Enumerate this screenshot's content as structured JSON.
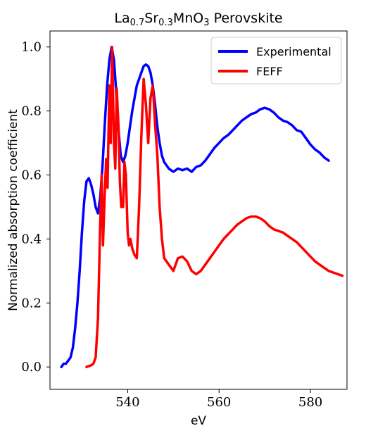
{
  "chart_data": {
    "type": "line",
    "title": {
      "parts": [
        {
          "text": "La",
          "sub": false
        },
        {
          "text": "0.7",
          "sub": true
        },
        {
          "text": "Sr",
          "sub": false
        },
        {
          "text": "0.3",
          "sub": true
        },
        {
          "text": "MnO",
          "sub": false
        },
        {
          "text": "3",
          "sub": true
        },
        {
          "text": " Perovskite",
          "sub": false
        }
      ]
    },
    "xlabel": "eV",
    "ylabel": "Normalized absorption coefficient",
    "xlim": [
      523,
      588
    ],
    "ylim": [
      -0.07,
      1.05
    ],
    "xticks": [
      540,
      560,
      580
    ],
    "yticks": [
      0.0,
      0.2,
      0.4,
      0.6,
      0.8,
      1.0
    ],
    "ytick_labels": [
      "0.0",
      "0.2",
      "0.4",
      "0.6",
      "0.8",
      "1.0"
    ],
    "grid": false,
    "legend_position": "top-right",
    "series": [
      {
        "name": "Experimental",
        "color": "#0000ff",
        "x": [
          525.5,
          526.0,
          526.5,
          527.0,
          527.5,
          528.0,
          528.5,
          529.0,
          529.5,
          530.0,
          530.5,
          531.0,
          531.5,
          532.0,
          532.5,
          533.0,
          533.5,
          534.0,
          534.5,
          535.0,
          535.5,
          536.0,
          536.5,
          537.0,
          537.5,
          538.0,
          538.5,
          539.0,
          539.5,
          540.0,
          540.5,
          541.0,
          541.5,
          542.0,
          542.5,
          543.0,
          543.5,
          544.0,
          544.5,
          545.0,
          545.5,
          546.0,
          546.5,
          547.0,
          547.5,
          548.0,
          548.5,
          549.0,
          549.5,
          550.0,
          551.0,
          552.0,
          553.0,
          554.0,
          555.0,
          556.0,
          557.0,
          558.0,
          559.0,
          560.0,
          561.0,
          562.0,
          563.0,
          564.0,
          565.0,
          566.0,
          567.0,
          568.0,
          569.0,
          570.0,
          571.0,
          572.0,
          573.0,
          574.0,
          575.0,
          576.0,
          577.0,
          578.0,
          579.0,
          580.0,
          581.0,
          582.0,
          583.0,
          584.0
        ],
        "y": [
          0.0,
          0.01,
          0.01,
          0.02,
          0.03,
          0.06,
          0.12,
          0.2,
          0.3,
          0.42,
          0.52,
          0.58,
          0.59,
          0.57,
          0.54,
          0.5,
          0.48,
          0.53,
          0.63,
          0.76,
          0.88,
          0.96,
          1.0,
          0.96,
          0.86,
          0.74,
          0.66,
          0.64,
          0.66,
          0.7,
          0.75,
          0.8,
          0.84,
          0.88,
          0.9,
          0.92,
          0.94,
          0.945,
          0.94,
          0.92,
          0.88,
          0.82,
          0.75,
          0.7,
          0.66,
          0.64,
          0.63,
          0.62,
          0.615,
          0.61,
          0.62,
          0.615,
          0.62,
          0.61,
          0.625,
          0.63,
          0.645,
          0.665,
          0.685,
          0.7,
          0.715,
          0.725,
          0.74,
          0.755,
          0.77,
          0.78,
          0.79,
          0.795,
          0.805,
          0.81,
          0.805,
          0.795,
          0.78,
          0.77,
          0.765,
          0.755,
          0.74,
          0.735,
          0.715,
          0.695,
          0.68,
          0.67,
          0.655,
          0.645
        ]
      },
      {
        "name": "FEFF",
        "color": "#ff0000",
        "x": [
          531.0,
          532.0,
          532.5,
          533.0,
          533.5,
          534.0,
          534.3,
          534.6,
          535.0,
          535.3,
          535.6,
          536.0,
          536.3,
          536.6,
          537.0,
          537.3,
          537.6,
          538.0,
          538.3,
          538.6,
          539.0,
          539.3,
          539.6,
          540.0,
          540.3,
          540.6,
          541.0,
          541.5,
          542.0,
          542.5,
          543.0,
          543.5,
          544.0,
          544.5,
          545.0,
          545.5,
          546.0,
          546.5,
          547.0,
          547.5,
          548.0,
          549.0,
          550.0,
          551.0,
          552.0,
          553.0,
          554.0,
          555.0,
          556.0,
          557.0,
          558.0,
          559.0,
          560.0,
          561.0,
          562.0,
          563.0,
          564.0,
          565.0,
          566.0,
          567.0,
          568.0,
          569.0,
          570.0,
          571.0,
          572.0,
          573.0,
          574.0,
          575.0,
          576.0,
          577.0,
          578.0,
          579.0,
          580.0,
          581.0,
          582.0,
          583.0,
          584.0,
          585.0,
          586.0,
          587.0
        ],
        "y": [
          0.0,
          0.005,
          0.01,
          0.03,
          0.15,
          0.45,
          0.6,
          0.38,
          0.55,
          0.65,
          0.56,
          0.88,
          0.7,
          1.0,
          0.7,
          0.62,
          0.87,
          0.75,
          0.58,
          0.5,
          0.5,
          0.64,
          0.6,
          0.42,
          0.38,
          0.4,
          0.37,
          0.35,
          0.34,
          0.5,
          0.72,
          0.9,
          0.82,
          0.7,
          0.84,
          0.88,
          0.76,
          0.66,
          0.5,
          0.4,
          0.34,
          0.32,
          0.3,
          0.34,
          0.345,
          0.33,
          0.3,
          0.29,
          0.3,
          0.32,
          0.34,
          0.36,
          0.38,
          0.4,
          0.415,
          0.43,
          0.445,
          0.455,
          0.465,
          0.47,
          0.47,
          0.465,
          0.455,
          0.44,
          0.43,
          0.425,
          0.42,
          0.41,
          0.4,
          0.39,
          0.375,
          0.36,
          0.345,
          0.33,
          0.32,
          0.31,
          0.3,
          0.295,
          0.29,
          0.285
        ]
      }
    ]
  }
}
